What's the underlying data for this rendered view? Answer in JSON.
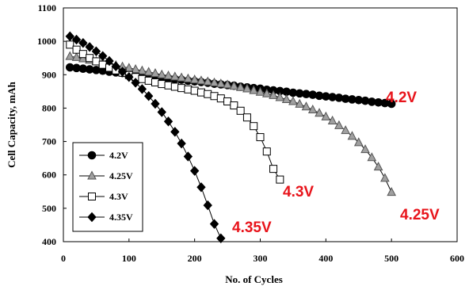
{
  "chart_data": {
    "type": "scatter",
    "xlabel": "No. of Cycles",
    "ylabel": "Cell Capacity, mAh",
    "xlim": [
      0,
      600
    ],
    "ylim": [
      400,
      1100
    ],
    "x_ticks": [
      0,
      100,
      200,
      300,
      400,
      500,
      600
    ],
    "y_ticks": [
      400,
      500,
      600,
      700,
      800,
      900,
      1000,
      1100
    ],
    "grid": false,
    "legend_position": "bottom-left",
    "series": [
      {
        "name": "4.2V",
        "marker": "circle",
        "marker_fill": "#000000",
        "x": [
          10,
          20,
          30,
          40,
          50,
          60,
          70,
          80,
          90,
          100,
          110,
          120,
          130,
          140,
          150,
          160,
          170,
          180,
          190,
          200,
          210,
          220,
          230,
          240,
          250,
          260,
          270,
          280,
          290,
          300,
          310,
          320,
          330,
          340,
          350,
          360,
          370,
          380,
          390,
          400,
          410,
          420,
          430,
          440,
          450,
          460,
          470,
          480,
          490,
          500
        ],
        "values": [
          922,
          920,
          918,
          916,
          914,
          912,
          909,
          907,
          905,
          903,
          900,
          898,
          896,
          894,
          891,
          889,
          887,
          885,
          882,
          880,
          878,
          876,
          873,
          871,
          869,
          867,
          864,
          862,
          860,
          858,
          855,
          853,
          851,
          849,
          846,
          844,
          842,
          840,
          837,
          835,
          833,
          831,
          828,
          826,
          824,
          822,
          819,
          817,
          815,
          813
        ]
      },
      {
        "name": "4.25V",
        "marker": "triangle",
        "marker_fill": "#a0a0a0",
        "x": [
          10,
          20,
          30,
          40,
          50,
          60,
          70,
          80,
          90,
          100,
          110,
          120,
          130,
          140,
          150,
          160,
          170,
          180,
          190,
          200,
          210,
          220,
          230,
          240,
          250,
          260,
          270,
          280,
          290,
          300,
          310,
          320,
          330,
          340,
          350,
          360,
          370,
          380,
          390,
          400,
          410,
          420,
          430,
          440,
          450,
          460,
          470,
          480,
          490,
          500
        ],
        "values": [
          955,
          952,
          948,
          944,
          940,
          936,
          932,
          928,
          924,
          920,
          916,
          912,
          908,
          904,
          900,
          897,
          894,
          891,
          888,
          885,
          882,
          879,
          876,
          873,
          870,
          866,
          862,
          858,
          853,
          848,
          843,
          838,
          832,
          826,
          820,
          812,
          804,
          795,
          785,
          774,
          762,
          748,
          733,
          716,
          697,
          676,
          652,
          624,
          590,
          548
        ]
      },
      {
        "name": "4.3V",
        "marker": "square",
        "marker_fill": "#ffffff",
        "x": [
          10,
          20,
          30,
          40,
          50,
          60,
          70,
          80,
          90,
          100,
          110,
          120,
          130,
          140,
          150,
          160,
          170,
          180,
          190,
          200,
          210,
          220,
          230,
          240,
          250,
          260,
          270,
          280,
          290,
          300,
          310,
          320,
          330
        ],
        "values": [
          990,
          975,
          962,
          950,
          940,
          930,
          921,
          913,
          906,
          899,
          893,
          887,
          882,
          877,
          872,
          868,
          864,
          860,
          856,
          852,
          847,
          842,
          836,
          829,
          820,
          808,
          792,
          772,
          746,
          713,
          670,
          618,
          586
        ]
      },
      {
        "name": "4.35V",
        "marker": "diamond",
        "marker_fill": "#000000",
        "x": [
          10,
          20,
          30,
          40,
          50,
          60,
          70,
          80,
          90,
          100,
          110,
          120,
          130,
          140,
          150,
          160,
          170,
          180,
          190,
          200,
          210,
          220,
          230,
          240
        ],
        "values": [
          1015,
          1005,
          995,
          983,
          970,
          956,
          941,
          925,
          909,
          893,
          876,
          857,
          836,
          813,
          788,
          760,
          729,
          694,
          655,
          612,
          563,
          509,
          453,
          410
        ]
      }
    ],
    "annotations": [
      "4.2V",
      "4.25V",
      "4.3V",
      "4.35V"
    ]
  }
}
